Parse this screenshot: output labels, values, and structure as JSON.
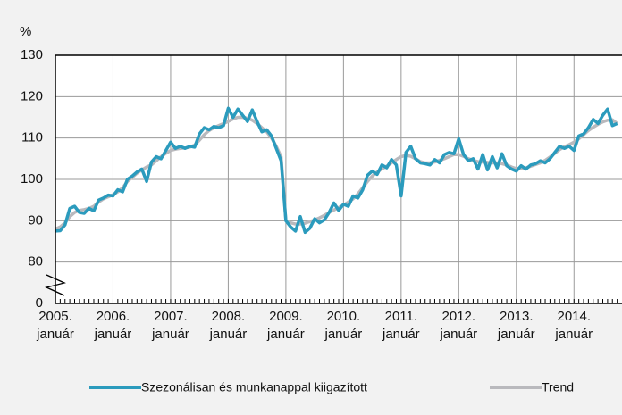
{
  "chart_data": {
    "type": "line",
    "y_axis_label": "%",
    "categories": [
      "2005. január",
      null,
      null,
      null,
      null,
      null,
      null,
      null,
      null,
      null,
      null,
      null,
      "2006. január",
      null,
      null,
      null,
      null,
      null,
      null,
      null,
      null,
      null,
      null,
      null,
      "2007. január",
      null,
      null,
      null,
      null,
      null,
      null,
      null,
      null,
      null,
      null,
      null,
      "2008. január",
      null,
      null,
      null,
      null,
      null,
      null,
      null,
      null,
      null,
      null,
      null,
      "2009. január",
      null,
      null,
      null,
      null,
      null,
      null,
      null,
      null,
      null,
      null,
      null,
      "2010. január",
      null,
      null,
      null,
      null,
      null,
      null,
      null,
      null,
      null,
      null,
      null,
      "2011. január",
      null,
      null,
      null,
      null,
      null,
      null,
      null,
      null,
      null,
      null,
      null,
      "2012. január",
      null,
      null,
      null,
      null,
      null,
      null,
      null,
      null,
      null,
      null,
      null,
      "2013. január",
      null,
      null,
      null,
      null,
      null,
      null,
      null,
      null,
      null,
      null,
      null,
      "2014. január",
      null,
      null,
      null,
      null,
      null,
      null,
      null,
      null,
      null
    ],
    "series": [
      {
        "name": "Szezonálisan és munkanappal kiigazított",
        "color": "#2b9bbd",
        "values": [
          87.5,
          87.6,
          89,
          93,
          93.5,
          92,
          91.8,
          93,
          92.4,
          95,
          95.5,
          96.2,
          96,
          97.5,
          97,
          100,
          100.8,
          101.8,
          102.5,
          99.5,
          104.2,
          105.5,
          105,
          107,
          109,
          107.5,
          108,
          107.5,
          108,
          107.8,
          111,
          112.5,
          112,
          112.8,
          112.5,
          113,
          117.2,
          115,
          117,
          115.5,
          114,
          116.8,
          114,
          111.5,
          112,
          110.5,
          107.5,
          104.5,
          90,
          88.5,
          87.5,
          91,
          87.2,
          88.2,
          90.5,
          89.5,
          90.2,
          92,
          94.3,
          92.5,
          94,
          93.5,
          96,
          95.5,
          97.5,
          101,
          102,
          101.2,
          103.5,
          102.8,
          104.8,
          103.5,
          96,
          106.5,
          108,
          105,
          104,
          103.8,
          103.5,
          104.8,
          104,
          106,
          106.5,
          106.2,
          109.8,
          106,
          104.5,
          105,
          102.5,
          106,
          102.3,
          105.5,
          102.8,
          106.2,
          103.3,
          102.5,
          102,
          103.3,
          102.5,
          103.5,
          103.8,
          104.5,
          104,
          105,
          106.5,
          108,
          107.5,
          108,
          107,
          110.5,
          111,
          112.5,
          114.5,
          113.5,
          115.5,
          117,
          113,
          113.5
        ]
      },
      {
        "name": "Trend",
        "color": "#b9b9bd",
        "values": [
          88,
          88.5,
          89.5,
          91,
          92,
          92.5,
          92.7,
          93,
          93.5,
          94.5,
          95.3,
          95.8,
          96.3,
          97,
          98,
          99.5,
          100.5,
          101.5,
          102.3,
          103,
          103.5,
          104.5,
          105.5,
          106.3,
          107,
          107.3,
          107.5,
          107.6,
          107.8,
          108.3,
          109.5,
          110.8,
          111.8,
          112.5,
          113,
          113.5,
          114,
          114.6,
          115,
          115,
          114.8,
          114.3,
          113.5,
          112.5,
          111.5,
          110,
          108,
          105.5,
          90,
          89.5,
          89.2,
          89.2,
          89.4,
          89.8,
          90.2,
          90.7,
          91.3,
          92,
          92.6,
          93.2,
          93.8,
          94.5,
          95.3,
          96.5,
          98,
          99.5,
          100.8,
          101.8,
          102.5,
          103.2,
          104,
          104.8,
          105.5,
          105.8,
          105.6,
          105,
          104.3,
          104,
          104,
          104.2,
          104.6,
          105,
          105.5,
          106,
          106,
          105.6,
          105,
          104.6,
          104.3,
          104.2,
          104.1,
          104,
          104,
          103.8,
          103.5,
          103,
          102.6,
          102.6,
          102.8,
          103.2,
          103.6,
          104,
          104.6,
          105.4,
          106.3,
          107.2,
          107.9,
          108.4,
          109,
          109.8,
          110.8,
          111.8,
          112.6,
          113.3,
          113.9,
          114.3,
          114.4,
          113.5
        ]
      }
    ],
    "ylim": [
      0,
      130
    ],
    "yticks": [
      0,
      80,
      90,
      100,
      110,
      120,
      130
    ],
    "y_axis_break": [
      0,
      80
    ],
    "grid": true,
    "legend": "bottom"
  }
}
